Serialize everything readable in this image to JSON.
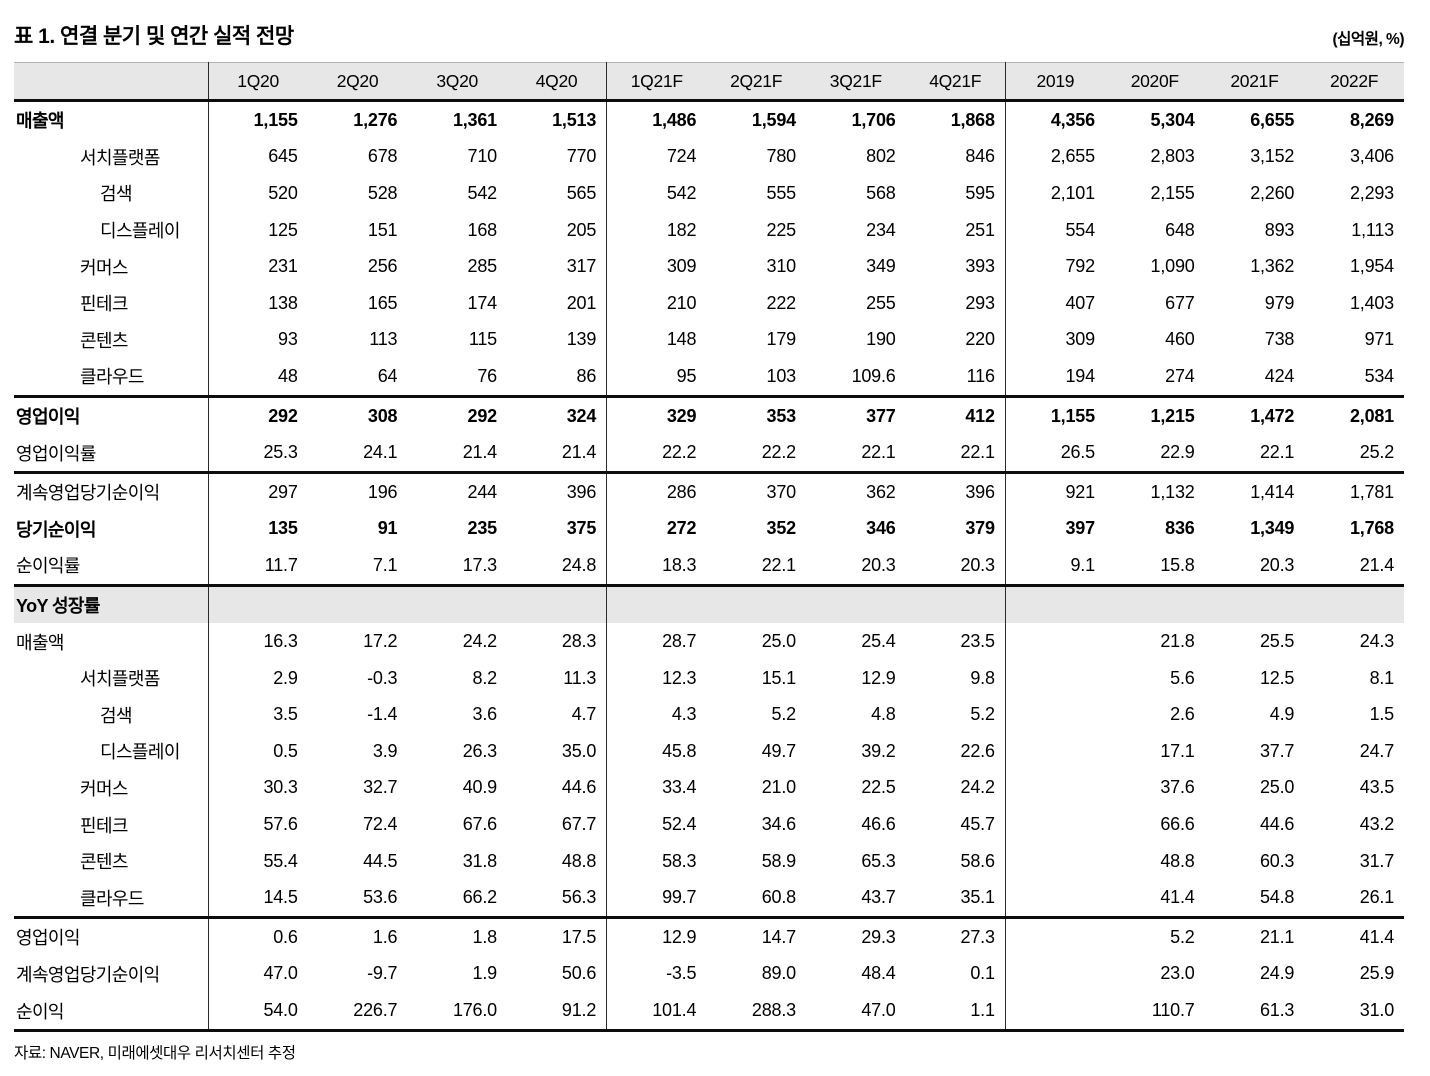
{
  "title": "표 1. 연결 분기 및 연간 실적 전망",
  "unit": "(십억원, %)",
  "source_note": "자료: NAVER, 미래에셋대우 리서치센터 추정",
  "columns": [
    "1Q20",
    "2Q20",
    "3Q20",
    "4Q20",
    "1Q21F",
    "2Q21F",
    "3Q21F",
    "4Q21F",
    "2019",
    "2020F",
    "2021F",
    "2022F"
  ],
  "sections": [
    {
      "rows": [
        {
          "label": "매출액",
          "indent": 0,
          "bold": true,
          "values": [
            "1,155",
            "1,276",
            "1,361",
            "1,513",
            "1,486",
            "1,594",
            "1,706",
            "1,868",
            "4,356",
            "5,304",
            "6,655",
            "8,269"
          ]
        },
        {
          "label": "서치플랫폼",
          "indent": 1,
          "bold": false,
          "values": [
            "645",
            "678",
            "710",
            "770",
            "724",
            "780",
            "802",
            "846",
            "2,655",
            "2,803",
            "3,152",
            "3,406"
          ]
        },
        {
          "label": "검색",
          "indent": 2,
          "bold": false,
          "values": [
            "520",
            "528",
            "542",
            "565",
            "542",
            "555",
            "568",
            "595",
            "2,101",
            "2,155",
            "2,260",
            "2,293"
          ]
        },
        {
          "label": "디스플레이",
          "indent": 2,
          "bold": false,
          "values": [
            "125",
            "151",
            "168",
            "205",
            "182",
            "225",
            "234",
            "251",
            "554",
            "648",
            "893",
            "1,113"
          ]
        },
        {
          "label": "커머스",
          "indent": 1,
          "bold": false,
          "values": [
            "231",
            "256",
            "285",
            "317",
            "309",
            "310",
            "349",
            "393",
            "792",
            "1,090",
            "1,362",
            "1,954"
          ]
        },
        {
          "label": "핀테크",
          "indent": 1,
          "bold": false,
          "values": [
            "138",
            "165",
            "174",
            "201",
            "210",
            "222",
            "255",
            "293",
            "407",
            "677",
            "979",
            "1,403"
          ]
        },
        {
          "label": "콘텐츠",
          "indent": 1,
          "bold": false,
          "values": [
            "93",
            "113",
            "115",
            "139",
            "148",
            "179",
            "190",
            "220",
            "309",
            "460",
            "738",
            "971"
          ]
        },
        {
          "label": "클라우드",
          "indent": 1,
          "bold": false,
          "values": [
            "48",
            "64",
            "76",
            "86",
            "95",
            "103",
            "109.6",
            "116",
            "194",
            "274",
            "424",
            "534"
          ]
        }
      ]
    },
    {
      "rows": [
        {
          "label": "영업이익",
          "indent": 0,
          "bold": true,
          "values": [
            "292",
            "308",
            "292",
            "324",
            "329",
            "353",
            "377",
            "412",
            "1,155",
            "1,215",
            "1,472",
            "2,081"
          ]
        },
        {
          "label": "영업이익률",
          "indent": 0,
          "bold": false,
          "values": [
            "25.3",
            "24.1",
            "21.4",
            "21.4",
            "22.2",
            "22.2",
            "22.1",
            "22.1",
            "26.5",
            "22.9",
            "22.1",
            "25.2"
          ]
        }
      ]
    },
    {
      "rows": [
        {
          "label": "계속영업당기순이익",
          "indent": 0,
          "bold": false,
          "values": [
            "297",
            "196",
            "244",
            "396",
            "286",
            "370",
            "362",
            "396",
            "921",
            "1,132",
            "1,414",
            "1,781"
          ]
        },
        {
          "label": "당기순이익",
          "indent": 0,
          "bold": true,
          "values": [
            "135",
            "91",
            "235",
            "375",
            "272",
            "352",
            "346",
            "379",
            "397",
            "836",
            "1,349",
            "1,768"
          ]
        },
        {
          "label": "순이익률",
          "indent": 0,
          "bold": false,
          "values": [
            "11.7",
            "7.1",
            "17.3",
            "24.8",
            "18.3",
            "22.1",
            "20.3",
            "20.3",
            "9.1",
            "15.8",
            "20.3",
            "21.4"
          ]
        }
      ]
    },
    {
      "header": "YoY 성장률",
      "rows": [
        {
          "label": "매출액",
          "indent": 0,
          "bold": false,
          "values": [
            "16.3",
            "17.2",
            "24.2",
            "28.3",
            "28.7",
            "25.0",
            "25.4",
            "23.5",
            "",
            "21.8",
            "25.5",
            "24.3"
          ]
        },
        {
          "label": "서치플랫폼",
          "indent": 1,
          "bold": false,
          "values": [
            "2.9",
            "-0.3",
            "8.2",
            "11.3",
            "12.3",
            "15.1",
            "12.9",
            "9.8",
            "",
            "5.6",
            "12.5",
            "8.1"
          ]
        },
        {
          "label": "검색",
          "indent": 2,
          "bold": false,
          "values": [
            "3.5",
            "-1.4",
            "3.6",
            "4.7",
            "4.3",
            "5.2",
            "4.8",
            "5.2",
            "",
            "2.6",
            "4.9",
            "1.5"
          ]
        },
        {
          "label": "디스플레이",
          "indent": 2,
          "bold": false,
          "values": [
            "0.5",
            "3.9",
            "26.3",
            "35.0",
            "45.8",
            "49.7",
            "39.2",
            "22.6",
            "",
            "17.1",
            "37.7",
            "24.7"
          ]
        },
        {
          "label": "커머스",
          "indent": 1,
          "bold": false,
          "values": [
            "30.3",
            "32.7",
            "40.9",
            "44.6",
            "33.4",
            "21.0",
            "22.5",
            "24.2",
            "",
            "37.6",
            "25.0",
            "43.5"
          ]
        },
        {
          "label": "핀테크",
          "indent": 1,
          "bold": false,
          "values": [
            "57.6",
            "72.4",
            "67.6",
            "67.7",
            "52.4",
            "34.6",
            "46.6",
            "45.7",
            "",
            "66.6",
            "44.6",
            "43.2"
          ]
        },
        {
          "label": "콘텐츠",
          "indent": 1,
          "bold": false,
          "values": [
            "55.4",
            "44.5",
            "31.8",
            "48.8",
            "58.3",
            "58.9",
            "65.3",
            "58.6",
            "",
            "48.8",
            "60.3",
            "31.7"
          ]
        },
        {
          "label": "클라우드",
          "indent": 1,
          "bold": false,
          "values": [
            "14.5",
            "53.6",
            "66.2",
            "56.3",
            "99.7",
            "60.8",
            "43.7",
            "35.1",
            "",
            "41.4",
            "54.8",
            "26.1"
          ]
        }
      ]
    },
    {
      "rows": [
        {
          "label": "영업이익",
          "indent": 0,
          "bold": false,
          "values": [
            "0.6",
            "1.6",
            "1.8",
            "17.5",
            "12.9",
            "14.7",
            "29.3",
            "27.3",
            "",
            "5.2",
            "21.1",
            "41.4"
          ]
        },
        {
          "label": "계속영업당기순이익",
          "indent": 0,
          "bold": false,
          "values": [
            "47.0",
            "-9.7",
            "1.9",
            "50.6",
            "-3.5",
            "89.0",
            "48.4",
            "0.1",
            "",
            "23.0",
            "24.9",
            "25.9"
          ]
        },
        {
          "label": "순이익",
          "indent": 0,
          "bold": false,
          "values": [
            "54.0",
            "226.7",
            "176.0",
            "91.2",
            "101.4",
            "288.3",
            "47.0",
            "1.1",
            "",
            "110.7",
            "61.3",
            "31.0"
          ]
        }
      ]
    }
  ]
}
